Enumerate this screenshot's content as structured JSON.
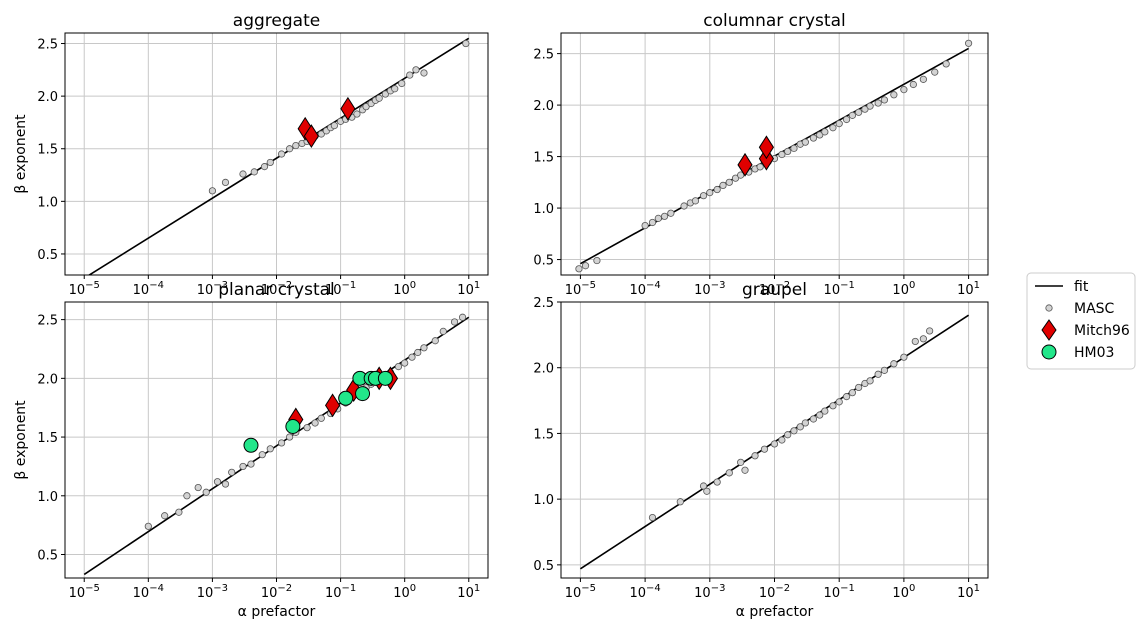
{
  "figure": {
    "legend": {
      "items": [
        {
          "label": "fit",
          "marker": "line",
          "color": "#000000"
        },
        {
          "label": "MASC",
          "marker": "circle-small",
          "color": "#d3d3d3"
        },
        {
          "label": "Mitch96",
          "marker": "diamond",
          "color": "#e00000"
        },
        {
          "label": "HM03",
          "marker": "circle-large",
          "color": "#22e68a"
        }
      ],
      "placement": "center-right"
    },
    "xlabel": "α prefactor",
    "ylabel": "β exponent"
  },
  "chart_data": [
    {
      "type": "scatter",
      "title": "aggregate",
      "x_scale": "log",
      "xlim": [
        1e-05,
        10
      ],
      "ylim": [
        0.3,
        2.6
      ],
      "x_ticks": [
        "10^-5",
        "10^-4",
        "10^-3",
        "10^-2",
        "10^-1",
        "10^0",
        "10^1"
      ],
      "y_ticks": [
        0.5,
        1.0,
        1.5,
        2.0,
        2.5
      ],
      "ylabel": "β exponent",
      "xlabel": "",
      "grid": true,
      "fit": {
        "x": [
          1e-05,
          10
        ],
        "y": [
          0.27,
          2.55
        ]
      },
      "series": [
        {
          "name": "MASC",
          "points": [
            [
              0.001,
              1.1
            ],
            [
              0.0016,
              1.18
            ],
            [
              0.003,
              1.26
            ],
            [
              0.0045,
              1.28
            ],
            [
              0.0065,
              1.33
            ],
            [
              0.008,
              1.37
            ],
            [
              0.012,
              1.45
            ],
            [
              0.016,
              1.5
            ],
            [
              0.02,
              1.53
            ],
            [
              0.025,
              1.55
            ],
            [
              0.03,
              1.57
            ],
            [
              0.04,
              1.62
            ],
            [
              0.05,
              1.64
            ],
            [
              0.06,
              1.67
            ],
            [
              0.07,
              1.7
            ],
            [
              0.08,
              1.72
            ],
            [
              0.1,
              1.76
            ],
            [
              0.12,
              1.78
            ],
            [
              0.15,
              1.8
            ],
            [
              0.18,
              1.83
            ],
            [
              0.22,
              1.87
            ],
            [
              0.25,
              1.9
            ],
            [
              0.3,
              1.93
            ],
            [
              0.35,
              1.96
            ],
            [
              0.4,
              1.98
            ],
            [
              0.5,
              2.02
            ],
            [
              0.6,
              2.05
            ],
            [
              0.7,
              2.07
            ],
            [
              0.9,
              2.12
            ],
            [
              1.2,
              2.2
            ],
            [
              1.5,
              2.25
            ],
            [
              2.0,
              2.22
            ],
            [
              9.0,
              2.5
            ]
          ]
        },
        {
          "name": "Mitch96",
          "points": [
            [
              0.028,
              1.69
            ],
            [
              0.035,
              1.62
            ],
            [
              0.13,
              1.88
            ]
          ]
        }
      ]
    },
    {
      "type": "scatter",
      "title": "columnar crystal",
      "x_scale": "log",
      "xlim": [
        1e-05,
        10
      ],
      "ylim": [
        0.35,
        2.7
      ],
      "x_ticks": [
        "10^-5",
        "10^-4",
        "10^-3",
        "10^-2",
        "10^-1",
        "10^0",
        "10^1"
      ],
      "y_ticks": [
        0.5,
        1.0,
        1.5,
        2.0,
        2.5
      ],
      "ylabel": "",
      "xlabel": "",
      "grid": true,
      "fit": {
        "x": [
          1e-05,
          10
        ],
        "y": [
          0.46,
          2.55
        ]
      },
      "series": [
        {
          "name": "MASC",
          "points": [
            [
              9.5e-06,
              0.41
            ],
            [
              1.2e-05,
              0.44
            ],
            [
              1.8e-05,
              0.49
            ],
            [
              0.0001,
              0.83
            ],
            [
              0.00013,
              0.86
            ],
            [
              0.00016,
              0.9
            ],
            [
              0.0002,
              0.92
            ],
            [
              0.00025,
              0.95
            ],
            [
              0.0004,
              1.02
            ],
            [
              0.0005,
              1.05
            ],
            [
              0.0006,
              1.07
            ],
            [
              0.0008,
              1.12
            ],
            [
              0.001,
              1.15
            ],
            [
              0.0013,
              1.18
            ],
            [
              0.0016,
              1.22
            ],
            [
              0.002,
              1.25
            ],
            [
              0.0025,
              1.29
            ],
            [
              0.003,
              1.32
            ],
            [
              0.004,
              1.35
            ],
            [
              0.005,
              1.38
            ],
            [
              0.006,
              1.4
            ],
            [
              0.008,
              1.45
            ],
            [
              0.01,
              1.48
            ],
            [
              0.013,
              1.52
            ],
            [
              0.016,
              1.55
            ],
            [
              0.02,
              1.58
            ],
            [
              0.025,
              1.62
            ],
            [
              0.03,
              1.64
            ],
            [
              0.04,
              1.68
            ],
            [
              0.05,
              1.71
            ],
            [
              0.06,
              1.74
            ],
            [
              0.08,
              1.78
            ],
            [
              0.1,
              1.82
            ],
            [
              0.13,
              1.86
            ],
            [
              0.16,
              1.9
            ],
            [
              0.2,
              1.93
            ],
            [
              0.25,
              1.96
            ],
            [
              0.3,
              1.99
            ],
            [
              0.4,
              2.02
            ],
            [
              0.5,
              2.05
            ],
            [
              0.7,
              2.1
            ],
            [
              1.0,
              2.15
            ],
            [
              1.4,
              2.2
            ],
            [
              2.0,
              2.25
            ],
            [
              3.0,
              2.32
            ],
            [
              4.5,
              2.4
            ],
            [
              10.0,
              2.6
            ]
          ]
        },
        {
          "name": "Mitch96",
          "points": [
            [
              0.0035,
              1.42
            ],
            [
              0.0075,
              1.48
            ],
            [
              0.0075,
              1.59
            ]
          ]
        }
      ]
    },
    {
      "type": "scatter",
      "title": "planar crystal",
      "x_scale": "log",
      "xlim": [
        1e-05,
        10
      ],
      "ylim": [
        0.3,
        2.65
      ],
      "x_ticks": [
        "10^-5",
        "10^-4",
        "10^-3",
        "10^-2",
        "10^-1",
        "10^0",
        "10^1"
      ],
      "y_ticks": [
        0.5,
        1.0,
        1.5,
        2.0,
        2.5
      ],
      "ylabel": "β exponent",
      "xlabel": "α prefactor",
      "grid": true,
      "fit": {
        "x": [
          1e-05,
          10
        ],
        "y": [
          0.33,
          2.52
        ]
      },
      "series": [
        {
          "name": "MASC",
          "points": [
            [
              0.0001,
              0.74
            ],
            [
              0.00018,
              0.83
            ],
            [
              0.0003,
              0.86
            ],
            [
              0.0004,
              1.0
            ],
            [
              0.0006,
              1.07
            ],
            [
              0.0008,
              1.03
            ],
            [
              0.0012,
              1.12
            ],
            [
              0.0016,
              1.1
            ],
            [
              0.002,
              1.2
            ],
            [
              0.003,
              1.25
            ],
            [
              0.004,
              1.27
            ],
            [
              0.006,
              1.35
            ],
            [
              0.008,
              1.4
            ],
            [
              0.012,
              1.45
            ],
            [
              0.016,
              1.5
            ],
            [
              0.02,
              1.54
            ],
            [
              0.03,
              1.58
            ],
            [
              0.04,
              1.62
            ],
            [
              0.05,
              1.66
            ],
            [
              0.07,
              1.7
            ],
            [
              0.09,
              1.74
            ],
            [
              0.12,
              1.79
            ],
            [
              0.15,
              1.84
            ],
            [
              0.2,
              1.88
            ],
            [
              0.25,
              1.92
            ],
            [
              0.3,
              1.95
            ],
            [
              0.4,
              1.99
            ],
            [
              0.5,
              2.03
            ],
            [
              0.6,
              2.05
            ],
            [
              0.8,
              2.1
            ],
            [
              1.0,
              2.13
            ],
            [
              1.3,
              2.18
            ],
            [
              1.6,
              2.22
            ],
            [
              2.0,
              2.26
            ],
            [
              3.0,
              2.32
            ],
            [
              4.0,
              2.4
            ],
            [
              6.0,
              2.48
            ],
            [
              8.0,
              2.52
            ]
          ]
        },
        {
          "name": "Mitch96",
          "points": [
            [
              0.02,
              1.65
            ],
            [
              0.075,
              1.77
            ],
            [
              0.16,
              1.9
            ],
            [
              0.4,
              2.0
            ],
            [
              0.6,
              2.0
            ]
          ]
        },
        {
          "name": "HM03",
          "points": [
            [
              0.004,
              1.43
            ],
            [
              0.018,
              1.59
            ],
            [
              0.12,
              1.83
            ],
            [
              0.2,
              2.0
            ],
            [
              0.22,
              1.87
            ],
            [
              0.3,
              2.0
            ],
            [
              0.35,
              2.0
            ],
            [
              0.5,
              2.0
            ]
          ]
        }
      ]
    },
    {
      "type": "scatter",
      "title": "graupel",
      "x_scale": "log",
      "xlim": [
        1e-05,
        10
      ],
      "ylim": [
        0.4,
        2.5
      ],
      "x_ticks": [
        "10^-5",
        "10^-4",
        "10^-3",
        "10^-2",
        "10^-1",
        "10^0",
        "10^1"
      ],
      "y_ticks": [
        0.5,
        1.0,
        1.5,
        2.0,
        2.5
      ],
      "ylabel": "",
      "xlabel": "α prefactor",
      "grid": true,
      "fit": {
        "x": [
          1e-05,
          10
        ],
        "y": [
          0.47,
          2.4
        ]
      },
      "series": [
        {
          "name": "MASC",
          "points": [
            [
              0.00013,
              0.86
            ],
            [
              0.00035,
              0.98
            ],
            [
              0.0008,
              1.1
            ],
            [
              0.0009,
              1.06
            ],
            [
              0.0013,
              1.13
            ],
            [
              0.002,
              1.2
            ],
            [
              0.003,
              1.28
            ],
            [
              0.0035,
              1.22
            ],
            [
              0.005,
              1.33
            ],
            [
              0.007,
              1.38
            ],
            [
              0.01,
              1.42
            ],
            [
              0.013,
              1.45
            ],
            [
              0.016,
              1.49
            ],
            [
              0.02,
              1.52
            ],
            [
              0.025,
              1.55
            ],
            [
              0.03,
              1.58
            ],
            [
              0.04,
              1.61
            ],
            [
              0.05,
              1.64
            ],
            [
              0.06,
              1.67
            ],
            [
              0.08,
              1.71
            ],
            [
              0.1,
              1.74
            ],
            [
              0.13,
              1.78
            ],
            [
              0.16,
              1.81
            ],
            [
              0.2,
              1.85
            ],
            [
              0.25,
              1.88
            ],
            [
              0.3,
              1.9
            ],
            [
              0.4,
              1.95
            ],
            [
              0.5,
              1.98
            ],
            [
              0.7,
              2.03
            ],
            [
              1.0,
              2.08
            ],
            [
              1.5,
              2.2
            ],
            [
              2.0,
              2.22
            ],
            [
              2.5,
              2.28
            ]
          ]
        }
      ]
    }
  ]
}
